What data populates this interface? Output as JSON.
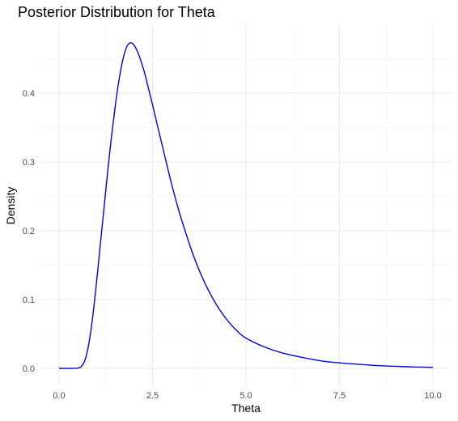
{
  "chart_data": {
    "type": "line",
    "title": "Posterior Distribution for Theta",
    "xlabel": "Theta",
    "ylabel": "Density",
    "xlim": [
      0,
      10
    ],
    "ylim": [
      0,
      0.47
    ],
    "x_ticks": [
      "0.0",
      "2.5",
      "5.0",
      "7.5",
      "10.0"
    ],
    "y_ticks": [
      "0.0",
      "0.1",
      "0.2",
      "0.3",
      "0.4"
    ],
    "grid": true,
    "series": [
      {
        "color": "#0000ee",
        "x": [
          0.0,
          0.3,
          0.5,
          0.6,
          0.7,
          0.8,
          0.9,
          1.0,
          1.1,
          1.2,
          1.3,
          1.4,
          1.5,
          1.6,
          1.7,
          1.8,
          1.9,
          2.0,
          2.1,
          2.2,
          2.3,
          2.4,
          2.5,
          2.6,
          2.8,
          3.0,
          3.2,
          3.4,
          3.6,
          3.8,
          4.0,
          4.25,
          4.5,
          4.75,
          5.0,
          5.5,
          6.0,
          6.5,
          7.0,
          7.5,
          8.0,
          8.5,
          9.0,
          9.5,
          10.0
        ],
        "y": [
          0.0,
          0.0,
          0.0004,
          0.003,
          0.013,
          0.037,
          0.075,
          0.124,
          0.178,
          0.232,
          0.286,
          0.336,
          0.38,
          0.418,
          0.447,
          0.466,
          0.473,
          0.47,
          0.46,
          0.445,
          0.427,
          0.405,
          0.383,
          0.36,
          0.315,
          0.27,
          0.23,
          0.195,
          0.163,
          0.136,
          0.113,
          0.089,
          0.07,
          0.055,
          0.044,
          0.031,
          0.022,
          0.016,
          0.011,
          0.008,
          0.006,
          0.004,
          0.003,
          0.002,
          0.0015
        ]
      }
    ]
  }
}
